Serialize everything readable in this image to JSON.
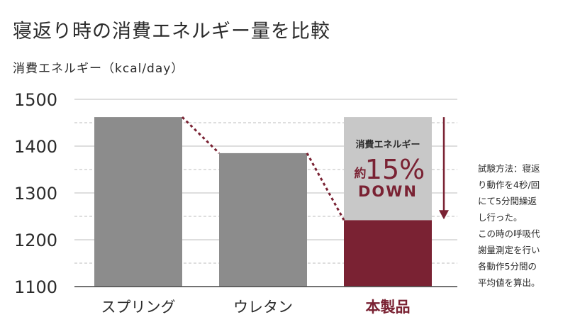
{
  "title": "寝返り時の消費エネルギー量を比較",
  "chart_data": {
    "type": "bar",
    "ylabel": "消費エネルギー（kcal/day）",
    "ylim": [
      1100,
      1500
    ],
    "yticks": [
      "1500",
      "1400",
      "1300",
      "1200",
      "1100"
    ],
    "categories": [
      "スプリング",
      "ウレタン",
      "本製品"
    ],
    "values": [
      1462,
      1385,
      1242
    ],
    "colors": {
      "bar": "#8c8c8c",
      "highlight": "#7a2233",
      "reduction": "#c8c8c8",
      "grid": "#bdbdbd",
      "axis": "#444444"
    },
    "annotation": {
      "label": "消費エネルギー",
      "prefix": "約",
      "percent": "15%",
      "word": "DOWN"
    }
  },
  "note": {
    "lines": [
      "試験方法：寝返",
      "り動作を4秒/回",
      "にて5分間繰返",
      "し行った。",
      "この時の呼吸代",
      "謝量測定を行い",
      "各動作5分間の",
      "平均値を算出。"
    ]
  }
}
